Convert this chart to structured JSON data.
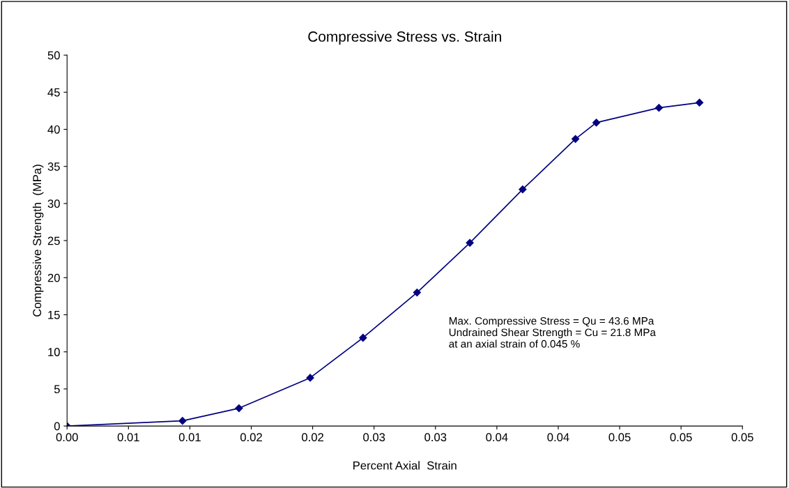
{
  "chart_data": {
    "type": "line",
    "title": "Compressive Stress vs. Strain",
    "xlabel": "Percent Axial  Strain",
    "ylabel": "Compressive Strength  (MPa)",
    "series": [
      {
        "color": "#000080",
        "x": [
          0,
          0.0094,
          0.014,
          0.0198,
          0.0241,
          0.0285,
          0.0328,
          0.0371,
          0.0414,
          0.0431,
          0.0482,
          0.0515
        ],
        "values": [
          0,
          0.7,
          2.4,
          6.5,
          11.9,
          18.0,
          24.7,
          31.9,
          38.7,
          40.9,
          42.9,
          43.6
        ]
      }
    ],
    "xlim": [
      0,
      0.055
    ],
    "xticks": [
      {
        "value": 0,
        "label": "0.00"
      },
      {
        "value": 0.005,
        "label": "0.01"
      },
      {
        "value": 0.01,
        "label": "0.01"
      },
      {
        "value": 0.015,
        "label": "0.02"
      },
      {
        "value": 0.02,
        "label": "0.02"
      },
      {
        "value": 0.025,
        "label": "0.03"
      },
      {
        "value": 0.03,
        "label": "0.03"
      },
      {
        "value": 0.035,
        "label": "0.04"
      },
      {
        "value": 0.04,
        "label": "0.04"
      },
      {
        "value": 0.045,
        "label": "0.05"
      },
      {
        "value": 0.05,
        "label": "0.05"
      },
      {
        "value": 0.055,
        "label": "0.05"
      }
    ],
    "ylim": [
      0,
      50
    ],
    "yticks": [
      0,
      5,
      10,
      15,
      20,
      25,
      30,
      35,
      40,
      45,
      50
    ],
    "annotations": [
      "Max. Compressive Stress = Qu = 43.6 MPa\nUndrained Shear Strength = Cu = 21.8 MPa\nat an axial strain of 0.045 %"
    ],
    "marker": "diamond",
    "line_style": "solid",
    "grid": false,
    "legend": false
  }
}
